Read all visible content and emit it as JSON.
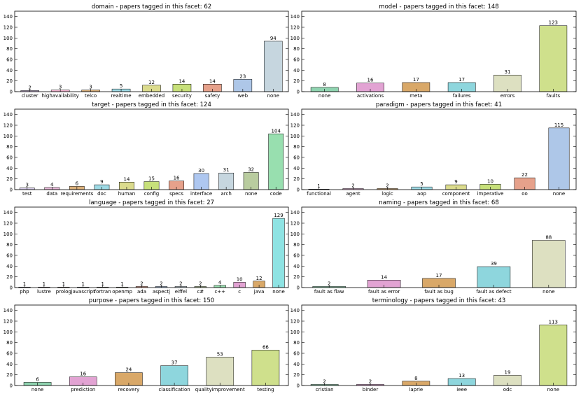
{
  "chart_data": [
    {
      "type": "bar",
      "facet": "domain",
      "title": "domain  -  papers tagged in this facet: 62",
      "categories": [
        "cluster",
        "highavailability",
        "telco",
        "realtime",
        "embedded",
        "security",
        "safety",
        "web",
        "none"
      ],
      "values": [
        2,
        3,
        3,
        5,
        12,
        14,
        14,
        23,
        94
      ],
      "colors": [
        "#c5b0d5",
        "#f7b6d2",
        "#dbb07a",
        "#9edae5",
        "#dbdb8d",
        "#c7e07a",
        "#e6a18b",
        "#aec7e8",
        "#c6d6df"
      ],
      "ylim": [
        0,
        150
      ],
      "yticks": [
        0,
        20,
        40,
        60,
        80,
        100,
        120,
        140
      ]
    },
    {
      "type": "bar",
      "facet": "model",
      "title": "model  -  papers tagged in this facet: 148",
      "categories": [
        "none",
        "activations",
        "meta",
        "failures",
        "errors",
        "faults"
      ],
      "values": [
        8,
        16,
        17,
        17,
        31,
        123
      ],
      "colors": [
        "#8fd4b0",
        "#e2a3d3",
        "#d9a868",
        "#8ed6dd",
        "#dde0c1",
        "#cfe08c"
      ],
      "ylim": [
        0,
        150
      ],
      "yticks": [
        0,
        20,
        40,
        60,
        80,
        100,
        120,
        140
      ]
    },
    {
      "type": "bar",
      "facet": "target",
      "title": "target  -  papers tagged in this facet: 124",
      "categories": [
        "test",
        "data",
        "requirements",
        "doc",
        "human",
        "config",
        "specs",
        "interface",
        "arch",
        "none",
        "code"
      ],
      "values": [
        3,
        4,
        6,
        9,
        14,
        15,
        16,
        30,
        31,
        32,
        104
      ],
      "colors": [
        "#d7ccea",
        "#e7b7d8",
        "#dbb07a",
        "#9edae5",
        "#dbdb8d",
        "#c7e07a",
        "#e6a18b",
        "#aec7f0",
        "#c6d6df",
        "#b9cc9f",
        "#98dfaf"
      ],
      "ylim": [
        0,
        150
      ],
      "yticks": [
        0,
        20,
        40,
        60,
        80,
        100,
        120,
        140
      ]
    },
    {
      "type": "bar",
      "facet": "paradigm",
      "title": "paradigm  -  papers tagged in this facet: 41",
      "categories": [
        "functional",
        "agent",
        "logic",
        "aop",
        "component",
        "imperative",
        "oo",
        "none"
      ],
      "values": [
        1,
        2,
        2,
        5,
        9,
        10,
        22,
        115
      ],
      "colors": [
        "#d7ccea",
        "#e7b7d8",
        "#dbb07a",
        "#9edae5",
        "#dbdb8d",
        "#c7e07a",
        "#e6a18b",
        "#aec7e8"
      ],
      "ylim": [
        0,
        150
      ],
      "yticks": [
        0,
        20,
        40,
        60,
        80,
        100,
        120,
        140
      ]
    },
    {
      "type": "bar",
      "facet": "language",
      "title": "language  -  papers tagged in this facet: 27",
      "categories": [
        "php",
        "lustre",
        "prolog",
        "javascript",
        "fortran",
        "openmp",
        "ada",
        "aspectj",
        "eiffel",
        "c#",
        "c++",
        "c",
        "java",
        "none"
      ],
      "values": [
        1,
        1,
        1,
        1,
        1,
        1,
        2,
        2,
        2,
        2,
        4,
        10,
        12,
        129
      ],
      "colors": [
        "#d7ccea",
        "#e7b7d8",
        "#dbb07a",
        "#9edae5",
        "#dbdb8d",
        "#c7e07a",
        "#e6a18b",
        "#aec7e8",
        "#c6d6df",
        "#b9cc9f",
        "#98dfaf",
        "#e2a3d3",
        "#d9a868",
        "#8ee3e3"
      ],
      "ylim": [
        0,
        150
      ],
      "yticks": [
        0,
        20,
        40,
        60,
        80,
        100,
        120,
        140
      ]
    },
    {
      "type": "bar",
      "facet": "naming",
      "title": "naming  -  papers tagged in this facet: 68",
      "categories": [
        "fault as flaw",
        "fault as error",
        "fault as bug",
        "fault as defect",
        "none"
      ],
      "values": [
        2,
        14,
        17,
        39,
        88
      ],
      "colors": [
        "#8fd4b0",
        "#e2a3d3",
        "#d9a868",
        "#8ed6dd",
        "#dde0c1"
      ],
      "ylim": [
        0,
        150
      ],
      "yticks": [
        0,
        20,
        40,
        60,
        80,
        100,
        120,
        140
      ]
    },
    {
      "type": "bar",
      "facet": "purpose",
      "title": "purpose  -  papers tagged in this facet: 150",
      "categories": [
        "none",
        "prediction",
        "recovery",
        "classification",
        "qualityimprovement",
        "testing"
      ],
      "values": [
        6,
        16,
        24,
        37,
        53,
        66
      ],
      "colors": [
        "#8fd4b0",
        "#e2a3d3",
        "#d9a868",
        "#8ed6dd",
        "#dde0c1",
        "#cfe08c"
      ],
      "ylim": [
        0,
        150
      ],
      "yticks": [
        0,
        20,
        40,
        60,
        80,
        100,
        120,
        140
      ]
    },
    {
      "type": "bar",
      "facet": "terminology",
      "title": "terminology  -  papers tagged in this facet: 43",
      "categories": [
        "cristian",
        "binder",
        "laprie",
        "ieee",
        "odc",
        "none"
      ],
      "values": [
        2,
        2,
        8,
        13,
        19,
        113
      ],
      "colors": [
        "#8fd4b0",
        "#e2a3d3",
        "#d9a868",
        "#8ed6dd",
        "#dde0c1",
        "#cfe08c"
      ],
      "ylim": [
        0,
        150
      ],
      "yticks": [
        0,
        20,
        40,
        60,
        80,
        100,
        120,
        140
      ]
    }
  ]
}
